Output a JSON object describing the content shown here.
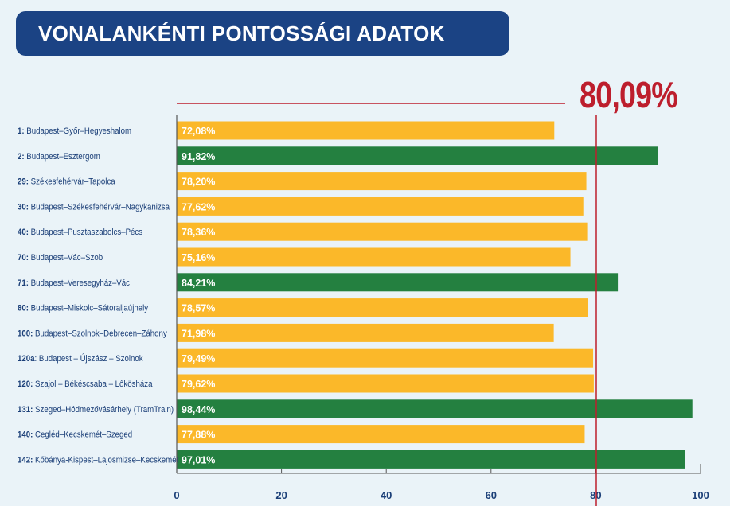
{
  "title": "VONALANKÉNTI PONTOSSÁGI ADATOK",
  "chart_data": {
    "type": "bar",
    "orientation": "horizontal",
    "title": "VONALANKÉNTI PONTOSSÁGI ADATOK",
    "average": {
      "value": 80.09,
      "label": "80,09%",
      "color": "#bd1e2d"
    },
    "categories": [
      {
        "num": "1:",
        "name": "Budapest–Győr–Hegyeshalom"
      },
      {
        "num": "2:",
        "name": "Budapest–Esztergom"
      },
      {
        "num": "29:",
        "name": "Székesfehérvár–Tapolca"
      },
      {
        "num": "30:",
        "name": "Budapest–Székesfehérvár–Nagykanizsa"
      },
      {
        "num": "40:",
        "name": "Budapest–Pusztaszabolcs–Pécs"
      },
      {
        "num": "70:",
        "name": "Budapest–Vác–Szob"
      },
      {
        "num": "71:",
        "name": "Budapest–Veresegyház–Vác"
      },
      {
        "num": "80:",
        "name": "Budapest–Miskolc–Sátoraljaújhely"
      },
      {
        "num": "100:",
        "name": "Budapest–Szolnok–Debrecen–Záhony"
      },
      {
        "num": "120a",
        "name": ": Budapest – Újszász – Szolnok"
      },
      {
        "num": "120:",
        "name": "Szajol – Békéscsaba – Lőkösháza"
      },
      {
        "num": "131:",
        "name": "Szeged–Hódmezővásárhely (TramTrain)"
      },
      {
        "num": "140:",
        "name": "Cegléd–Kecskemét–Szeged"
      },
      {
        "num": "142:",
        "name": "Kőbánya-Kispest–Lajosmizse–Kecskemét"
      }
    ],
    "values": [
      72.08,
      91.82,
      78.2,
      77.62,
      78.36,
      75.16,
      84.21,
      78.57,
      71.98,
      79.49,
      79.62,
      98.44,
      77.88,
      97.01
    ],
    "value_labels": [
      "72,08%",
      "91,82%",
      "78,20%",
      "77,62%",
      "78,36%",
      "75,16%",
      "84,21%",
      "78,57%",
      "71,98%",
      "79,49%",
      "79,62%",
      "98,44%",
      "77,88%",
      "97,01%"
    ],
    "xlim": [
      0,
      100
    ],
    "xticks": [
      "0",
      "20",
      "40",
      "60",
      "80",
      "100"
    ],
    "colors": {
      "below": "#fbb829",
      "above": "#248040",
      "label": "#1b3f78"
    }
  }
}
